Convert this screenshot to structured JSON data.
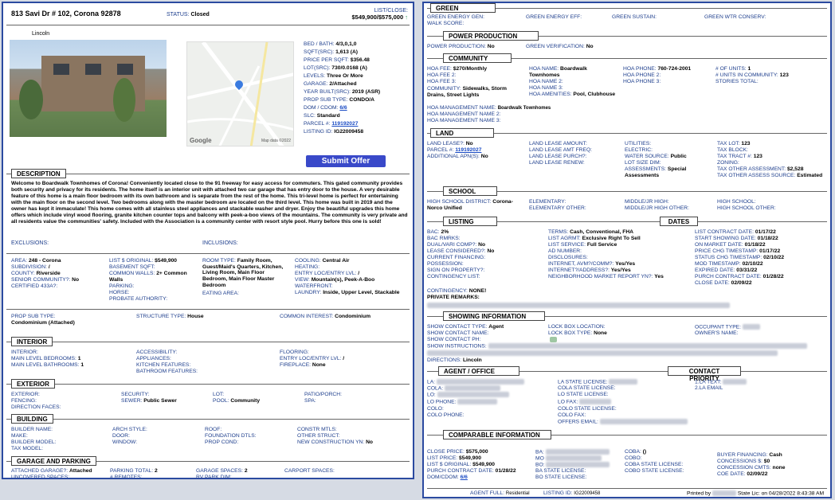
{
  "header": {
    "address": "813 Savi Dr # 102, Corona 92878",
    "status_label": "STATUS:",
    "status": "Closed",
    "list_close_label": "LIST/CLOSE:",
    "list_close": "$549,900/$575,000",
    "arrow": "↑"
  },
  "photo_caption": "Lincoln",
  "map": {
    "brand": "Google",
    "data": "Map data ©2022"
  },
  "facts": [
    {
      "l": "BED / BATH:",
      "v": "4/3,0,1,0"
    },
    {
      "l": "SQFT(src):",
      "v": "1,613 (A)"
    },
    {
      "l": "PRICE PER SQFT:",
      "v": "$356.48"
    },
    {
      "l": "LOT(src):",
      "v": "730/0.0168 (A)"
    },
    {
      "l": "LEVELS:",
      "v": "Three Or More"
    },
    {
      "l": "GARAGE:",
      "v": "2/Attached"
    },
    {
      "l": "YEAR BUILT(src):",
      "v": "2019 (ASR)"
    },
    {
      "l": "PROP SUB TYPE:",
      "v": "CONDO/A"
    },
    {
      "l": "DOM / CDOM:",
      "v": "6/6"
    },
    {
      "l": "SLC:",
      "v": "Standard"
    },
    {
      "l": "PARCEL #:",
      "v": "119192027"
    },
    {
      "l": "LISTING ID:",
      "v": "IG22009458"
    }
  ],
  "submit_offer": "Submit Offer",
  "description": {
    "title": "DESCRIPTION",
    "text": "Welcome to Boardwalk Townhomes of Corona! Conveniently located close to the 91 freeway for easy access for commuters. This gated community provides both security and privacy for its residents. The home itself is an interior unit with attached two car garage that has entry door to the house. A very desirable feature of this home is a main floor bedroom with its own bathroom and is separate from the rest of the home. This tri-level home is perfect for entertaining with the main floor on the second level. Two bedrooms along with the master bedroom are located on the third level. This home was built in 2019 and the owner has kept it immaculate! This home comes with all stainless steel appliances and stackable washer and dryer. Enjoy the beautiful upgrades this home offers which include vinyl wood flooring, granite kitchen counter tops and balcony with peek-a-boo views of the mountains. The community is very private and all residents value the communities' safety. Included with the Association is a community center with resort style pool. Hurry before this one is sold!"
  },
  "exclusions": "EXCLUSIONS:",
  "inclusions": "INCLUSIONS:",
  "details": {
    "area": "248 - Corona",
    "subdivision": "/",
    "county": "Riverside",
    "senior": "No",
    "certified": "",
    "list_orig": "$549,900",
    "common_walls": "2+ Common Walls",
    "room_type": "Family Room, Guest/Maid's Quarters, Kitchen, Living Room, Main Floor Bedroom, Main Floor Master Bedroom",
    "cooling": "Central Air",
    "view": "Mountain(s), Peek-A-Boo",
    "laundry": "Inside, Upper Level, Stackable",
    "prop_sub_type": "Condominium (Attached)",
    "structure_type": "House",
    "common_interest": "Condominium"
  },
  "interior": {
    "title": "INTERIOR",
    "main_bed": "1",
    "main_bath": "1",
    "fireplace": "None"
  },
  "exterior": {
    "title": "EXTERIOR",
    "sewer": "Public Sewer",
    "pool": "Community"
  },
  "building": {
    "title": "BUILDING",
    "new_construction": "No"
  },
  "garage": {
    "title": "GARAGE AND PARKING",
    "attached": "Attached",
    "parking_total": "2",
    "garage_spaces": "2"
  },
  "green": {
    "title": "GREEN"
  },
  "power": {
    "title": "POWER PRODUCTION",
    "pp": "No",
    "gv": "No"
  },
  "community": {
    "title": "COMMUNITY",
    "hoa_fee": "$270/Monthly",
    "hoa_name": "Boardwalk Townhomes",
    "hoa_phone": "760-724-2001",
    "num_units": "1",
    "units_comm": "123",
    "community": "Sidewalks, Storm Drains, Street Lights",
    "amenities": "Pool, Clubhouse",
    "mgmt": "Boardwalk Townhomes"
  },
  "land": {
    "title": "LAND",
    "lease": "No",
    "parcel": "119192027",
    "addl_apn": "No",
    "water": "Public",
    "assessments": "Special Assessments",
    "tax_lot": "123",
    "tax_tract": "123",
    "tax_other": "$2,528",
    "tax_src": "Estimated"
  },
  "school": {
    "title": "SCHOOL",
    "district": "Corona-Norco Unified"
  },
  "listing": {
    "title": "LISTING",
    "bac": "2%",
    "terms": "Cash, Conventional, FHA",
    "agmt": "Exclusive Right To Sell",
    "service": "Full Service",
    "lease_cons": "No",
    "internet": "Yes/Yes",
    "internet_addr": "Yes/Yes",
    "nmr": "Yes",
    "contingency": "NONE!",
    "private": "PRIVATE REMARKS:"
  },
  "dates": {
    "title": "DATES",
    "list_contract": "01/17/22",
    "start_showing": "01/18/22",
    "on_market": "01/18/22",
    "price_chg": "01/17/22",
    "status_chg": "02/10/22",
    "mod": "02/10/22",
    "expired": "03/31/22",
    "purch": "01/28/22",
    "close": "02/09/22"
  },
  "showing": {
    "title": "SHOWING INFORMATION",
    "type": "Agent",
    "lockbox_type": "None",
    "directions": "Lincoln"
  },
  "agent": {
    "title": "AGENT / OFFICE",
    "priority": "CONTACT PRIORITY",
    "la_text": "1.LA TEXT:",
    "la_email": "2.LA EMAIL"
  },
  "comparable": {
    "title": "COMPARABLE INFORMATION",
    "close": "$575,000",
    "list": "$549,900",
    "list_orig": "$549,900",
    "purch": "01/28/22",
    "dom": "6/6",
    "coba": "()",
    "financing": "Cash",
    "concessions": "$0",
    "conc_cmts": "none",
    "coe": "02/09/22"
  },
  "footer": {
    "agent_full": "AGENT FULL:",
    "agent_full_val": "Residential",
    "listing_id_label": "LISTING ID:",
    "listing_id": "IG22009458",
    "printed": "Printed by",
    "state_lic": "State Lic: on 04/28/2022 8:43:38 AM"
  }
}
